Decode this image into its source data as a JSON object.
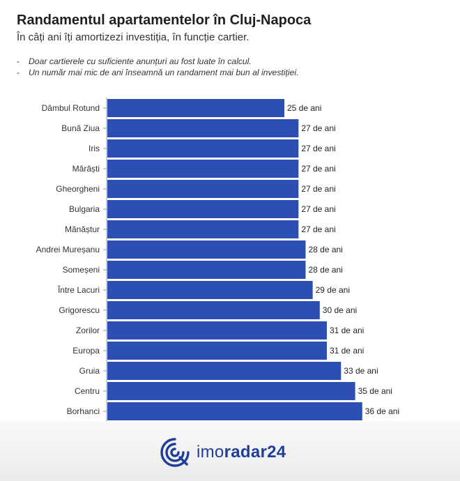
{
  "header": {
    "title": "Randamentul apartamentelor în Cluj-Napoca",
    "subtitle": "În câți ani îți amortizezi investiția, în funcție cartier."
  },
  "notes": [
    "Doar cartierele cu suficiente anunțuri au fost luate în calcul.",
    "Un număr mai mic de ani înseamnă un randament mai bun al investiției."
  ],
  "chart_data": {
    "type": "bar",
    "orientation": "horizontal",
    "categories": [
      "Dâmbul Rotund",
      "Bună Ziua",
      "Iris",
      "Mărăști",
      "Gheorgheni",
      "Bulgaria",
      "Mănăștur",
      "Andrei Mureșanu",
      "Someșeni",
      "Între Lacuri",
      "Grigorescu",
      "Zorilor",
      "Europa",
      "Gruia",
      "Centru",
      "Borhanci"
    ],
    "values": [
      25,
      27,
      27,
      27,
      27,
      27,
      27,
      28,
      28,
      29,
      30,
      31,
      31,
      33,
      35,
      36
    ],
    "value_suffix": " de ani",
    "bar_color": "#2b4fb3",
    "grid": false,
    "legend": "none"
  },
  "footer": {
    "logo_text_light": "imo",
    "logo_text_bold": "radar24",
    "brand_color": "#1f3e99"
  }
}
